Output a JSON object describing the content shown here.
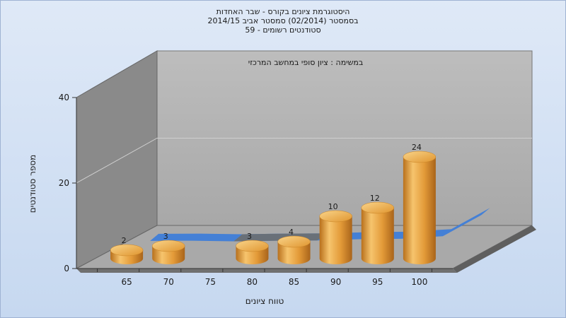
{
  "chart_data": {
    "type": "bar",
    "title_lines": [
      "היסטוגרמת ציונים בקורס - שבר האחדות",
      "בסמסטר  (02/2014)  סמסטר אביב 2014/15",
      "סטודנטים רשומים - 59"
    ],
    "annotation": "במשימה : ציון סופי במחשב המרכזי",
    "xlabel": "טווח ציונים",
    "ylabel": "מספר סטודנטים",
    "categories": [
      "65",
      "70",
      "75",
      "80",
      "85",
      "90",
      "95",
      "100"
    ],
    "values": [
      2,
      3,
      0,
      3,
      4,
      10,
      12,
      24
    ],
    "yticks": [
      0,
      20,
      40
    ],
    "ylim": [
      0,
      40
    ],
    "colors": {
      "bar_light": "#f6c46d",
      "bar_mid": "#e39a38",
      "bar_dark": "#b8701c",
      "curve": "#3e7dd8",
      "curve_dark": "#6e6e6e",
      "back_wall": "#b2b2b2",
      "left_wall": "#8a8a8a",
      "floor": "#a9a9a9",
      "floor_edge": "#707070"
    }
  }
}
